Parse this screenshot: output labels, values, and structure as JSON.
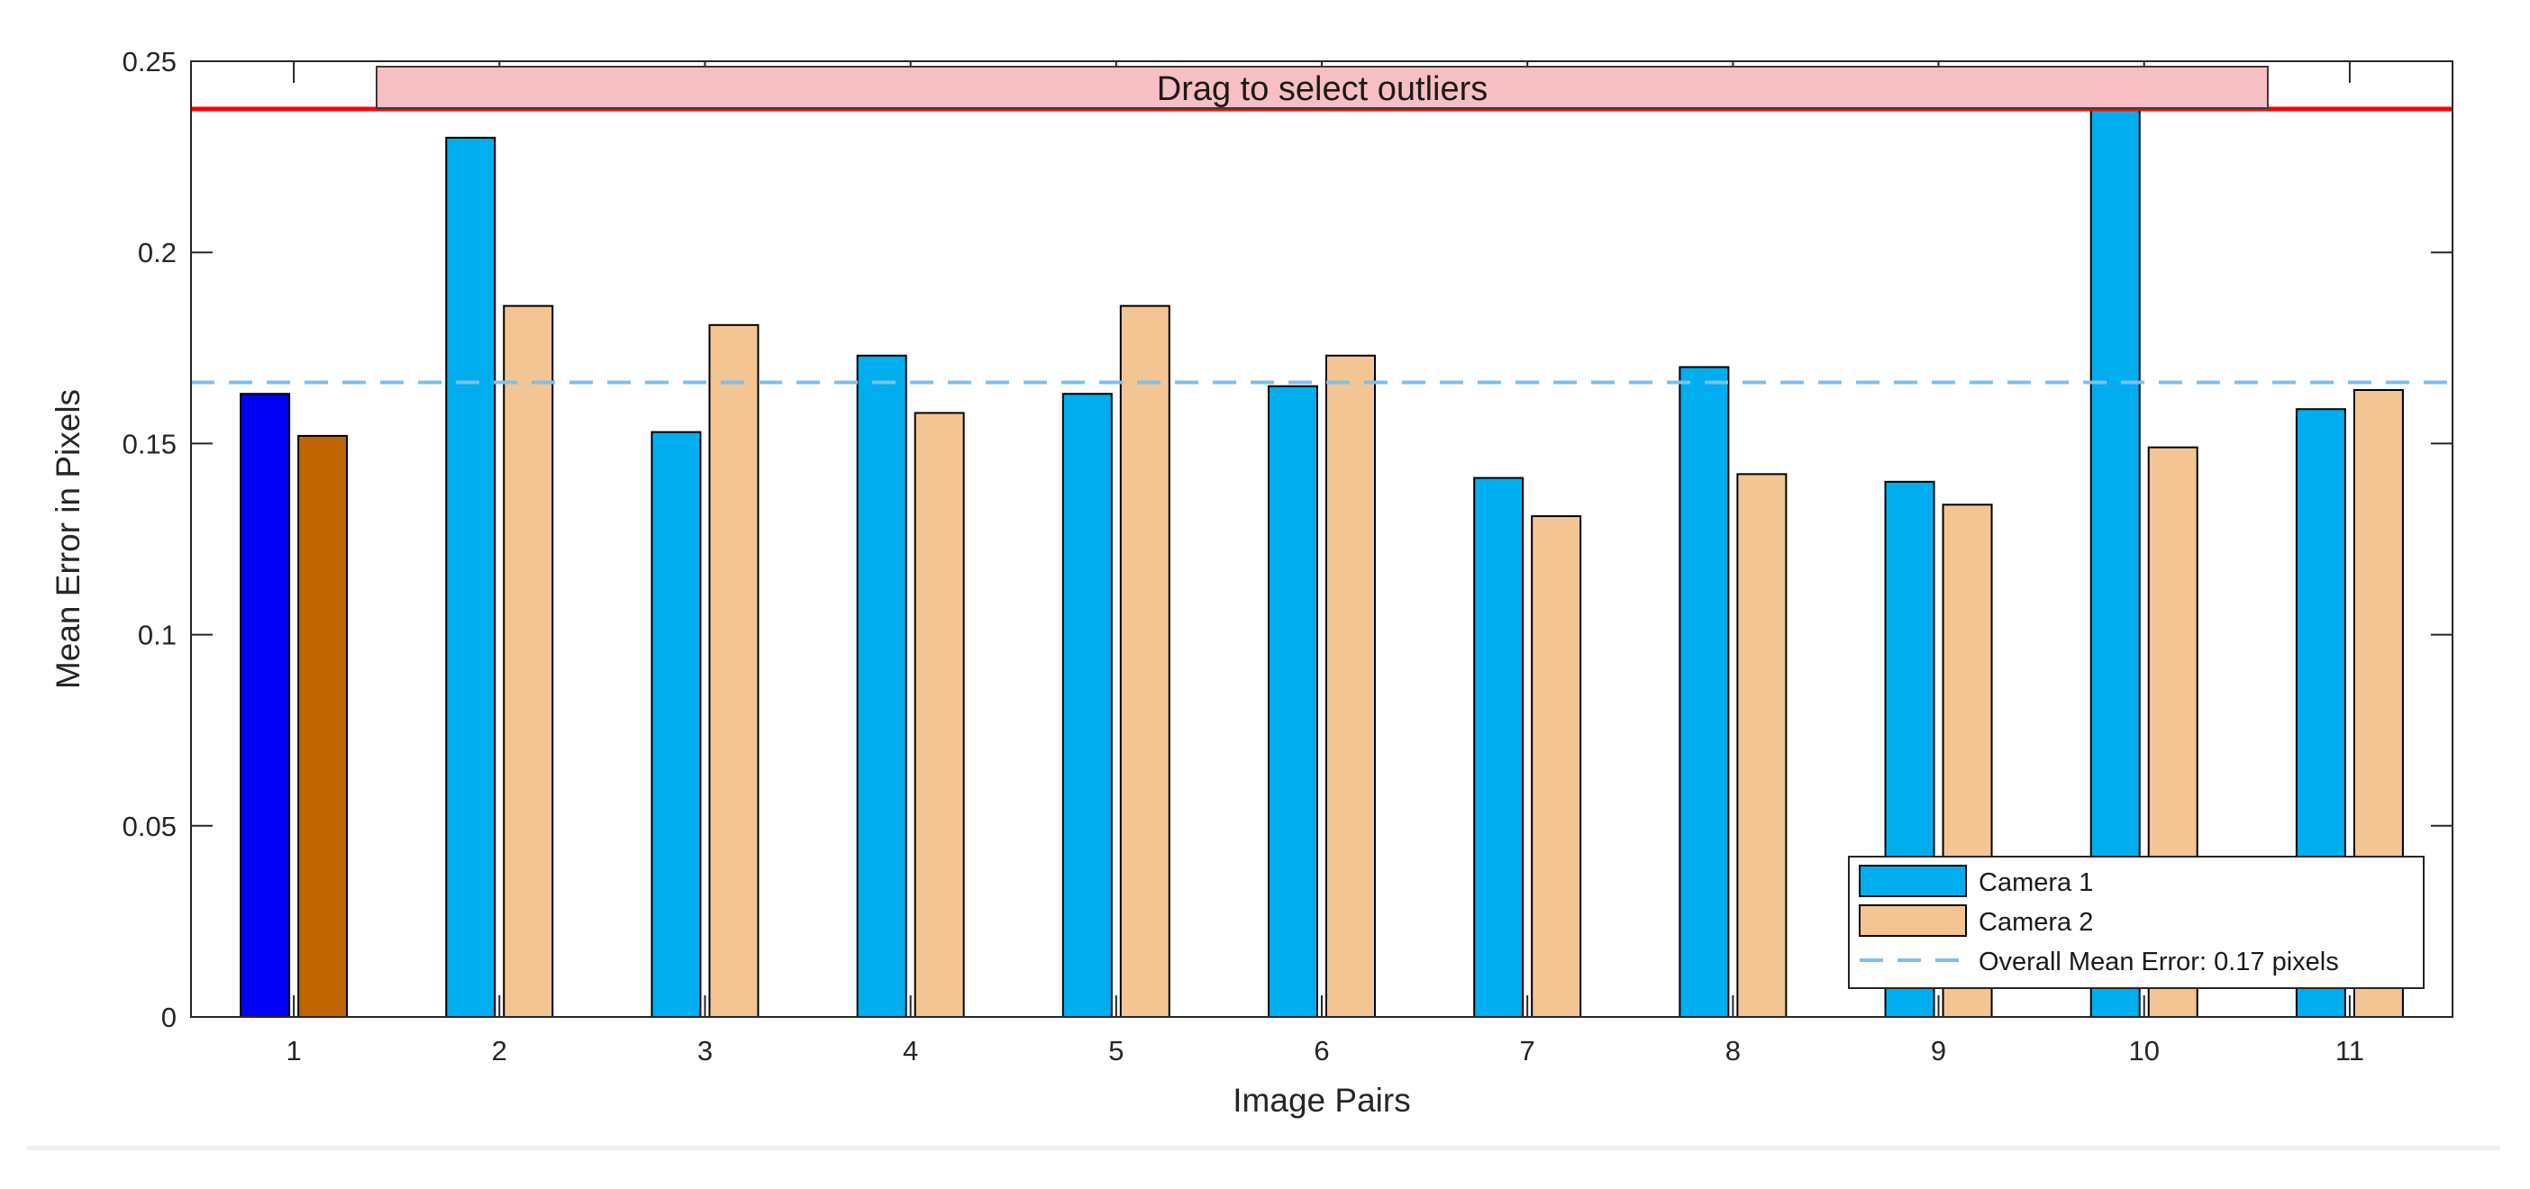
{
  "colors": {
    "camera1": "#00AEEF",
    "camera2": "#F3C592",
    "camera1_selected": "#0000F4",
    "camera2_selected": "#C06400",
    "bar_edge": "#000000",
    "mean_line": "#7FC0E8",
    "threshold_line": "#FF0000",
    "drag_bar_fill": "#F8BFC2"
  },
  "drag_handle": {
    "label": "Drag to select outliers",
    "threshold_value": 0.2375
  },
  "chart_data": {
    "type": "bar",
    "title": "",
    "xlabel": "Image Pairs",
    "ylabel": "Mean Error in Pixels",
    "ylim": [
      0,
      0.25
    ],
    "yticks": [
      0,
      0.05,
      0.1,
      0.15,
      0.2,
      0.25
    ],
    "ytick_labels": [
      "0",
      "0.05",
      "0.1",
      "0.15",
      "0.2",
      "0.25"
    ],
    "categories": [
      "1",
      "2",
      "3",
      "4",
      "5",
      "6",
      "7",
      "8",
      "9",
      "10",
      "11"
    ],
    "series": [
      {
        "name": "Camera 1",
        "values": [
          0.163,
          0.23,
          0.153,
          0.173,
          0.163,
          0.165,
          0.141,
          0.17,
          0.14,
          0.24,
          0.159
        ]
      },
      {
        "name": "Camera 2",
        "values": [
          0.152,
          0.186,
          0.181,
          0.158,
          0.186,
          0.173,
          0.131,
          0.142,
          0.134,
          0.149,
          0.164
        ]
      }
    ],
    "selected_pair": "1",
    "overall_mean": {
      "value": 0.166,
      "label": "Overall Mean Error: 0.17 pixels"
    },
    "grid": false,
    "legend": {
      "placement": "bottom-right",
      "entries": [
        "Camera 1",
        "Camera 2",
        "Overall Mean Error: 0.17 pixels"
      ]
    }
  }
}
